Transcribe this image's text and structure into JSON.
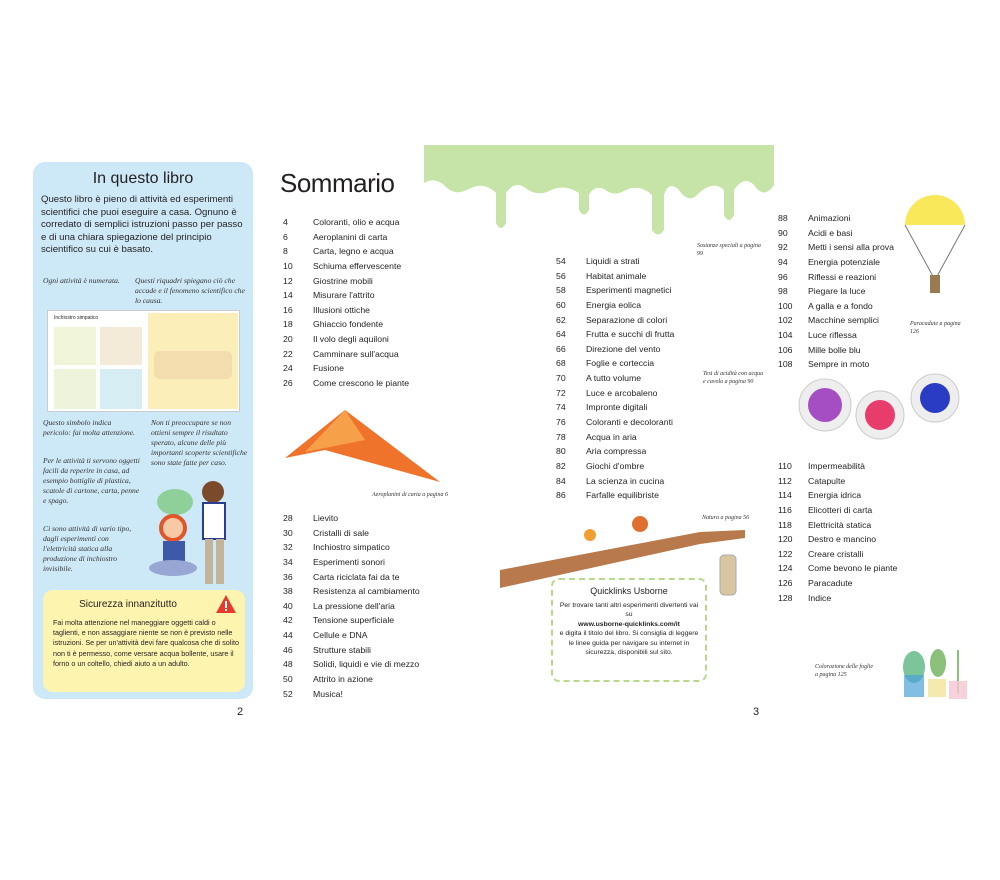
{
  "left_page": {
    "panel_title": "In questo libro",
    "intro": "Questo libro è pieno di attività ed esperimenti scientifici che puoi eseguire a casa. Ognuno è corredato di semplici istruzioni passo per passo e di una chiara spiegazione del principio scientifico su cui è basato.",
    "notes": {
      "numbered": "Ogni attività è numerata.",
      "boxes": "Questi riquadri spiegano ciò che accade e il fenomeno scientifico che lo causa.",
      "danger": "Questo simbolo indica pericolo: fai molta attenzione.",
      "worry": "Non ti preoccupare se non ottieni sempre il risultato sperato, alcune delle più importanti scoperte scientifiche sono state fatte per caso.",
      "objects": "Per le attività ti servono oggetti facili da reperire in casa, ad esempio bottiglie di plastica, scatole di cartone, carta, penne e spago.",
      "types": "Ci sono attività di vario tipo, dagli esperimenti con l'elettricità statica alla produzione di inchiostro invisibile."
    },
    "mini_page_title": "Inchiostro simpatico",
    "safety": {
      "title": "Sicurezza innanzitutto",
      "text": "Fai molta attenzione nel maneggiare oggetti caldi o taglienti, e non assaggiare niente se non è previsto nelle istruzioni. Se per un'attività devi fare qualcosa che di solito non ti è permesso, come versare acqua bollente, usare il forno o un coltello, chiedi aiuto a un adulto.",
      "icon": "warning-icon",
      "color": "#e63a2e"
    },
    "page_number": "2",
    "panel_color": "#cde8f6"
  },
  "right_page": {
    "title": "Sommario",
    "toc_col1a": [
      [
        "4",
        "Coloranti, olio e acqua"
      ],
      [
        "6",
        "Aeroplanini di carta"
      ],
      [
        "8",
        "Carta, legno e acqua"
      ],
      [
        "10",
        "Schiuma effervescente"
      ],
      [
        "12",
        "Giostrine mobili"
      ],
      [
        "14",
        "Misurare l'attrito"
      ],
      [
        "16",
        "Illusioni ottiche"
      ],
      [
        "18",
        "Ghiaccio fondente"
      ],
      [
        "20",
        "Il volo degli aquiloni"
      ],
      [
        "22",
        "Camminare sull'acqua"
      ],
      [
        "24",
        "Fusione"
      ],
      [
        "26",
        "Come crescono le piante"
      ]
    ],
    "toc_col1b": [
      [
        "28",
        "Lievito"
      ],
      [
        "30",
        "Cristalli di sale"
      ],
      [
        "32",
        "Inchiostro simpatico"
      ],
      [
        "34",
        "Esperimenti sonori"
      ],
      [
        "36",
        "Carta riciclata fai da te"
      ],
      [
        "38",
        "Resistenza al cambiamento"
      ],
      [
        "40",
        "La pressione dell'aria"
      ],
      [
        "42",
        "Tensione superficiale"
      ],
      [
        "44",
        "Cellule e DNA"
      ],
      [
        "46",
        "Strutture stabili"
      ],
      [
        "48",
        "Solidi, liquidi e vie di mezzo"
      ],
      [
        "50",
        "Attrito in azione"
      ],
      [
        "52",
        "Musica!"
      ]
    ],
    "toc_col2": [
      [
        "54",
        "Liquidi a strati"
      ],
      [
        "56",
        "Habitat animale"
      ],
      [
        "58",
        "Esperimenti magnetici"
      ],
      [
        "60",
        "Energia eolica"
      ],
      [
        "62",
        "Separazione di colori"
      ],
      [
        "64",
        "Frutta e succhi di frutta"
      ],
      [
        "66",
        "Direzione del vento"
      ],
      [
        "68",
        "Foglie e corteccia"
      ],
      [
        "70",
        "A tutto volume"
      ],
      [
        "72",
        "Luce e arcobaleno"
      ],
      [
        "74",
        "Impronte digitali"
      ],
      [
        "76",
        "Coloranti e decoloranti"
      ],
      [
        "78",
        "Acqua in aria"
      ],
      [
        "80",
        "Aria compressa"
      ],
      [
        "82",
        "Giochi d'ombre"
      ],
      [
        "84",
        "La scienza in cucina"
      ],
      [
        "86",
        "Farfalle equilibriste"
      ]
    ],
    "toc_col3a": [
      [
        "88",
        "Animazioni"
      ],
      [
        "90",
        "Acidi e basi"
      ],
      [
        "92",
        "Metti i sensi alla prova"
      ],
      [
        "94",
        "Energia potenziale"
      ],
      [
        "96",
        "Riflessi e reazioni"
      ],
      [
        "98",
        "Piegare la luce"
      ],
      [
        "100",
        "A galla e a fondo"
      ],
      [
        "102",
        "Macchine semplici"
      ],
      [
        "104",
        "Luce riflessa"
      ],
      [
        "106",
        "Mille bolle blu"
      ],
      [
        "108",
        "Sempre in moto"
      ]
    ],
    "toc_col3b": [
      [
        "110",
        "Impermeabilità"
      ],
      [
        "112",
        "Catapulte"
      ],
      [
        "114",
        "Energia idrica"
      ],
      [
        "116",
        "Elicotteri di carta"
      ],
      [
        "118",
        "Elettricità statica"
      ],
      [
        "120",
        "Destro e mancino"
      ],
      [
        "122",
        "Creare cristalli"
      ],
      [
        "124",
        "Come bevono le piante"
      ],
      [
        "126",
        "Paracadute"
      ],
      [
        "128",
        "Indice"
      ]
    ],
    "captions": {
      "slime": "Sostanze speciali a pagina 99",
      "plane": "Aeroplanini di carta a pagina 6",
      "acid": "Test di acidità con acqua e cavolo a pagina 90",
      "parachute": "Paracadute a pagina 126",
      "nature": "Natura a pagina 56",
      "leaves": "Colorazione delle foglie a pagina 125"
    },
    "quicklinks": {
      "title": "Quicklinks Usborne",
      "text1": "Per trovare tanti altri esperimenti divertenti vai su",
      "url": "www.usborne-quicklinks.com/it",
      "text2": "e digita il titolo del libro. Si consiglia di leggere le linee guida per navigare su internet in sicurezza, disponibili sul sito."
    },
    "page_number": "3",
    "slime_color": "#c6e3a8"
  }
}
